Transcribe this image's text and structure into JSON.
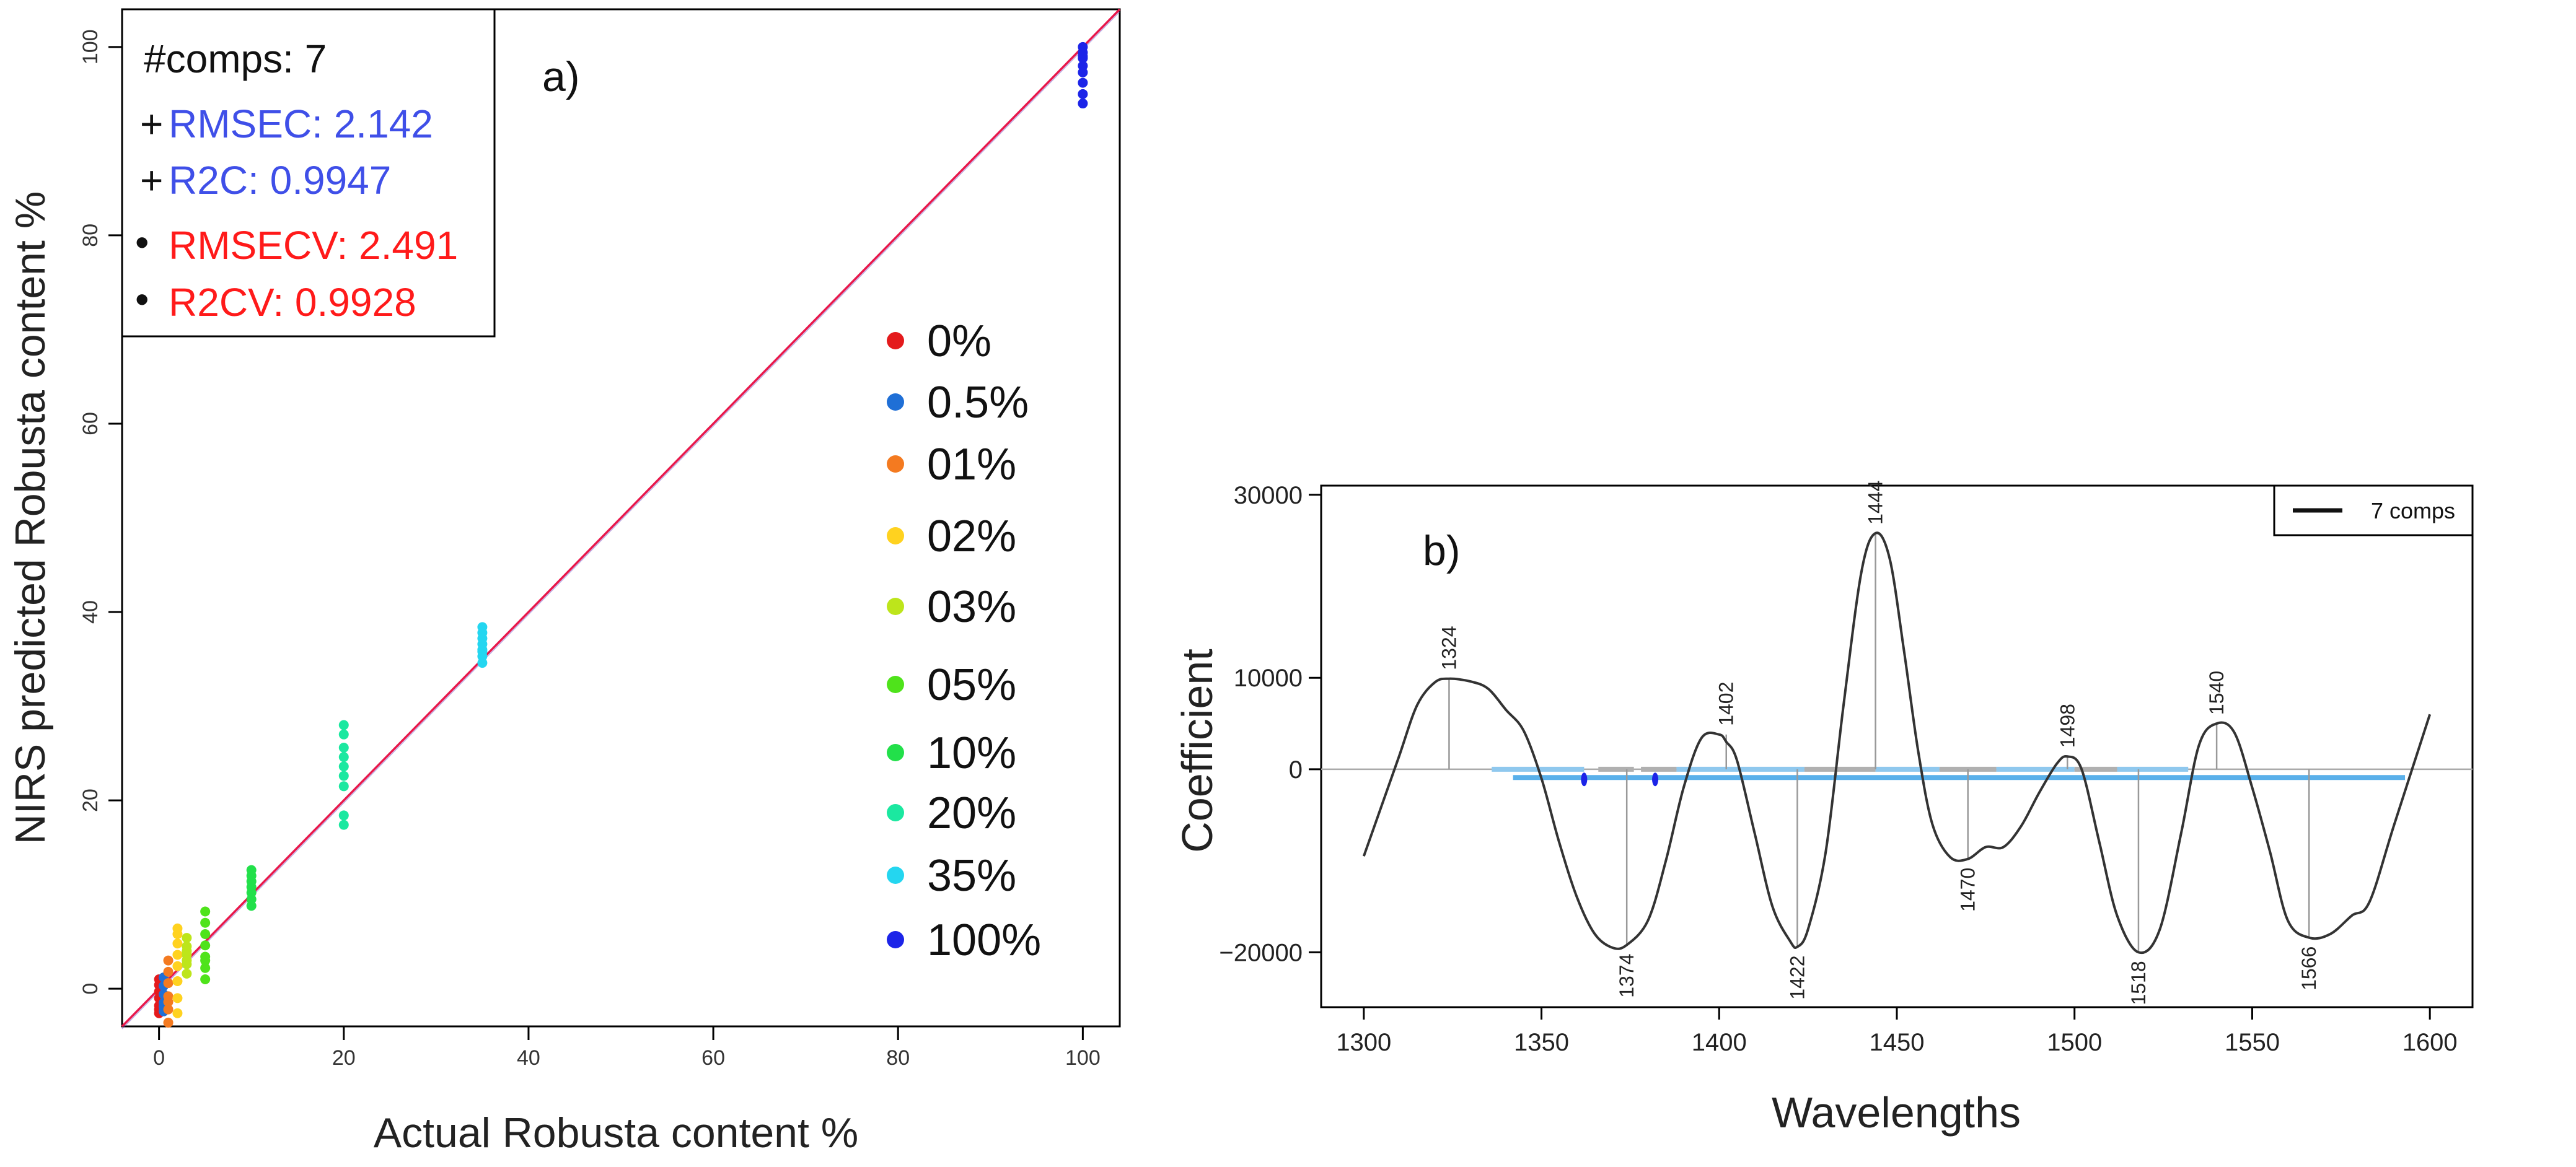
{
  "chart_data": [
    {
      "type": "scatter",
      "panel_label": "a)",
      "xlabel": "Actual Robusta content %",
      "ylabel": "NIRS predicted Robusta content %",
      "xlim": [
        -4,
        104
      ],
      "ylim": [
        -4,
        104
      ],
      "xticks": [
        0,
        20,
        40,
        60,
        80,
        100
      ],
      "yticks": [
        0,
        20,
        40,
        60,
        80,
        100
      ],
      "stats": {
        "comps": "#comps: 7",
        "rmsec_prefix": "+",
        "rmsec": "RMSEC: 2.142",
        "r2c_prefix": "+",
        "r2c": "R2C: 0.9947",
        "rmsecv_prefix": "•",
        "rmsecv": "RMSECV: 2.491",
        "r2cv_prefix": "•",
        "r2cv": "R2CV: 0.9928"
      },
      "fit_line": {
        "x": [
          -4,
          104
        ],
        "y": [
          -4,
          104
        ],
        "color": "#e8174a",
        "color2": "#7a55c8"
      },
      "series": [
        {
          "name": "0%",
          "color": "#e41a1c",
          "x": [
            0,
            0,
            0,
            0,
            0,
            0,
            0
          ],
          "y": [
            -2.6,
            -1.8,
            -1.0,
            -0.3,
            0.4,
            1.0,
            -2.2
          ]
        },
        {
          "name": "0.5%",
          "color": "#1f6fd6",
          "x": [
            0.5,
            0.5,
            0.5,
            0.5,
            0.5,
            0.5
          ],
          "y": [
            -2.4,
            -1.5,
            -0.6,
            0.3,
            1.2,
            -1.9
          ]
        },
        {
          "name": "01%",
          "color": "#f47a20",
          "x": [
            1,
            1,
            1,
            1,
            1,
            1,
            1
          ],
          "y": [
            -3.6,
            -2.2,
            -0.8,
            0.6,
            1.8,
            3.0,
            -1.4
          ]
        },
        {
          "name": "02%",
          "color": "#ffd21f",
          "x": [
            2,
            2,
            2,
            2,
            2,
            2,
            2,
            2
          ],
          "y": [
            -2.6,
            -1.0,
            0.8,
            2.4,
            3.6,
            4.8,
            5.8,
            6.4
          ]
        },
        {
          "name": "03%",
          "color": "#bde51b",
          "x": [
            3,
            3,
            3,
            3,
            3,
            3,
            3
          ],
          "y": [
            1.6,
            2.6,
            3.6,
            4.5,
            5.4,
            3.0,
            4.0
          ]
        },
        {
          "name": "05%",
          "color": "#4fe31b",
          "x": [
            5,
            5,
            5,
            5,
            5,
            5,
            5,
            5
          ],
          "y": [
            1.0,
            2.2,
            3.4,
            4.6,
            5.8,
            7.0,
            8.2,
            3.0
          ]
        },
        {
          "name": "10%",
          "color": "#22e04a",
          "x": [
            10,
            10,
            10,
            10,
            10,
            10,
            10
          ],
          "y": [
            8.8,
            9.5,
            10.2,
            10.8,
            11.4,
            12.0,
            12.6
          ]
        },
        {
          "name": "20%",
          "color": "#1be8a0",
          "x": [
            20,
            20,
            20,
            20,
            20,
            20,
            20,
            20,
            20
          ],
          "y": [
            17.4,
            18.4,
            21.5,
            22.6,
            23.6,
            24.6,
            25.6,
            27.0,
            28.0
          ]
        },
        {
          "name": "35%",
          "color": "#24d6f0",
          "x": [
            35,
            35,
            35,
            35,
            35,
            35,
            35,
            35
          ],
          "y": [
            34.6,
            35.3,
            36.0,
            36.6,
            37.2,
            37.8,
            38.4,
            35.8
          ]
        },
        {
          "name": "100%",
          "color": "#1c24e8",
          "x": [
            100,
            100,
            100,
            100,
            100,
            100,
            100,
            100,
            100
          ],
          "y": [
            94.0,
            95.0,
            96.2,
            97.3,
            98.0,
            98.8,
            99.4,
            100.0,
            99.0
          ]
        }
      ]
    },
    {
      "type": "line",
      "panel_label": "b)",
      "xlabel": "Wavelengths",
      "ylabel": "Coefficient",
      "xlim": [
        1288,
        1612
      ],
      "ylim": [
        -26000,
        31000
      ],
      "xticks": [
        1300,
        1350,
        1400,
        1450,
        1500,
        1550,
        1600
      ],
      "yticks": [
        -20000,
        0,
        10000,
        30000
      ],
      "ytick_labels": [
        "−20000",
        "0",
        "10000",
        "30000"
      ],
      "legend": {
        "label": "7 comps",
        "position": "top-right"
      },
      "series": [
        {
          "name": "7 comps",
          "color": "#333333",
          "x": [
            1300,
            1305,
            1310,
            1315,
            1320,
            1324,
            1330,
            1335,
            1340,
            1345,
            1350,
            1355,
            1360,
            1365,
            1370,
            1374,
            1380,
            1385,
            1390,
            1395,
            1400,
            1402,
            1405,
            1410,
            1415,
            1420,
            1422,
            1425,
            1430,
            1435,
            1440,
            1444,
            1448,
            1452,
            1456,
            1460,
            1465,
            1470,
            1475,
            1480,
            1485,
            1490,
            1495,
            1498,
            1502,
            1507,
            1512,
            1518,
            1524,
            1530,
            1535,
            1540,
            1545,
            1550,
            1555,
            1560,
            1566,
            1572,
            1578,
            1583,
            1590,
            1600
          ],
          "y": [
            -9500,
            -4000,
            1500,
            7000,
            9500,
            9900,
            9600,
            8800,
            6500,
            4200,
            -1000,
            -8000,
            -14000,
            -18000,
            -19500,
            -19200,
            -16500,
            -10000,
            -2000,
            3400,
            3800,
            3000,
            1000,
            -7000,
            -15000,
            -18800,
            -19400,
            -17500,
            -9000,
            7000,
            21500,
            25800,
            23000,
            13000,
            2000,
            -6000,
            -9600,
            -9800,
            -8500,
            -8500,
            -6200,
            -2600,
            600,
            1400,
            0,
            -8000,
            -16000,
            -20000,
            -17500,
            -7000,
            2600,
            5000,
            4000,
            -2000,
            -9000,
            -16500,
            -18400,
            -18000,
            -16000,
            -14500,
            -6000,
            6000
          ]
        }
      ],
      "peaks": [
        {
          "x": 1324,
          "y": 9900,
          "label": "1324",
          "pos": "above"
        },
        {
          "x": 1374,
          "y": -19200,
          "label": "1374",
          "pos": "below"
        },
        {
          "x": 1402,
          "y": 3800,
          "label": "1402",
          "pos": "above"
        },
        {
          "x": 1422,
          "y": -19400,
          "label": "1422",
          "pos": "below"
        },
        {
          "x": 1444,
          "y": 25800,
          "label": "1444",
          "pos": "above"
        },
        {
          "x": 1470,
          "y": -9800,
          "label": "1470",
          "pos": "below"
        },
        {
          "x": 1498,
          "y": 1400,
          "label": "1498",
          "pos": "above"
        },
        {
          "x": 1518,
          "y": -20000,
          "label": "1518",
          "pos": "below"
        },
        {
          "x": 1540,
          "y": 5000,
          "label": "1540",
          "pos": "above"
        },
        {
          "x": 1566,
          "y": -18400,
          "label": "1566",
          "pos": "below"
        }
      ],
      "interval_bars": [
        {
          "x0": 1336,
          "x1": 1362,
          "y": 0,
          "color": "#8fc8ee"
        },
        {
          "x0": 1366,
          "x1": 1376,
          "y": 0,
          "color": "#b0b0b0"
        },
        {
          "x0": 1378,
          "x1": 1388,
          "y": 0,
          "color": "#b0b0b0"
        },
        {
          "x0": 1388,
          "x1": 1424,
          "y": 0,
          "color": "#8fc8ee"
        },
        {
          "x0": 1424,
          "x1": 1444,
          "y": 0,
          "color": "#b0b0b0"
        },
        {
          "x0": 1444,
          "x1": 1462,
          "y": 0,
          "color": "#8fc8ee"
        },
        {
          "x0": 1462,
          "x1": 1478,
          "y": 0,
          "color": "#b0b0b0"
        },
        {
          "x0": 1478,
          "x1": 1500,
          "y": 0,
          "color": "#8fc8ee"
        },
        {
          "x0": 1500,
          "x1": 1512,
          "y": 0,
          "color": "#b0b0b0"
        },
        {
          "x0": 1512,
          "x1": 1532,
          "y": 0,
          "color": "#8fc8ee"
        },
        {
          "x0": 1342,
          "x1": 1432,
          "y": -900,
          "color": "#5ab0ea"
        },
        {
          "x0": 1432,
          "x1": 1593,
          "y": -900,
          "color": "#5ab0ea"
        }
      ],
      "interval_marks": [
        {
          "x": 1362,
          "y": -900,
          "color": "#1c24e8"
        },
        {
          "x": 1382,
          "y": -900,
          "color": "#1c24e8"
        }
      ]
    }
  ]
}
